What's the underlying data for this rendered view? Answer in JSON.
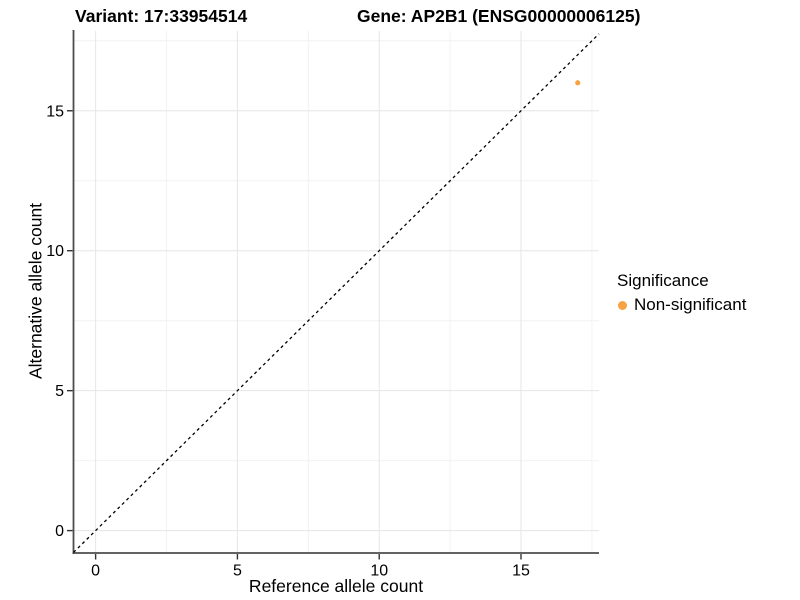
{
  "chart_data": {
    "type": "scatter",
    "titles": [
      "Variant: 17:33954514",
      "Gene: AP2B1 (ENSG00000006125)"
    ],
    "xlabel": "Reference allele count",
    "ylabel": "Alternative allele count",
    "x_ticks": [
      0,
      5,
      10,
      15
    ],
    "y_ticks": [
      0,
      5,
      10,
      15
    ],
    "x_minor_ticks": [
      2.5,
      7.5,
      12.5,
      17.5
    ],
    "y_minor_ticks": [
      2.5,
      7.5,
      12.5,
      17.5
    ],
    "xlim": [
      -0.78,
      17.75
    ],
    "ylim": [
      -0.8,
      17.85
    ],
    "grid": "on",
    "identity_line": {
      "style": "dashed",
      "slope": 1,
      "intercept": 0,
      "color": "#000000"
    },
    "series": [
      {
        "name": "Non-significant",
        "color": "#F9A242",
        "points": [
          [
            17,
            16
          ]
        ],
        "point_radius": 2.6
      }
    ],
    "legend": {
      "title": "Significance",
      "position": "right",
      "items": [
        {
          "label": "Non-significant",
          "color": "#F9A242"
        }
      ]
    }
  },
  "colors": {
    "background": "#FFFFFF",
    "axis_line": "#4D4D4D",
    "tick_mark": "#333333",
    "text": "#000000",
    "grid_major": "#E6E6E6",
    "grid_minor": "#F2F2F2"
  }
}
